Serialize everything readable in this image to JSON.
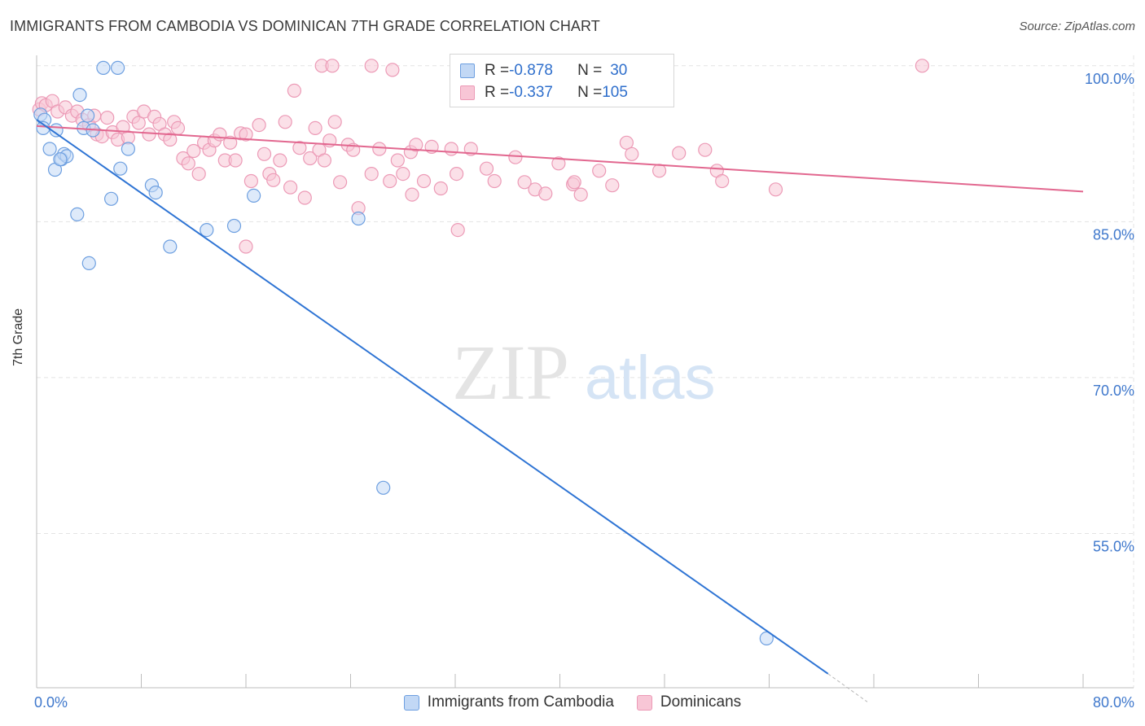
{
  "title": "IMMIGRANTS FROM CAMBODIA VS DOMINICAN 7TH GRADE CORRELATION CHART",
  "source": "Source: ZipAtlas.com",
  "watermark": {
    "zip": "ZIP",
    "atlas": "atlas"
  },
  "colors": {
    "blue_fill": "#c2d8f5",
    "blue_stroke": "#6d9fe0",
    "blue_line": "#2e74d4",
    "pink_fill": "#f8c6d6",
    "pink_stroke": "#ec9ab6",
    "pink_line": "#e2678f",
    "tick_text": "#3f78cc",
    "grid": "#e3e3e3"
  },
  "legend": {
    "rows": [
      {
        "r_label": "R = ",
        "r_value": "-0.878",
        "n_label": "N = ",
        "n_value": "30"
      },
      {
        "r_label": "R = ",
        "r_value": "-0.337",
        "n_label": "N = ",
        "n_value": "105"
      }
    ]
  },
  "bottom_legend": [
    "Immigrants from Cambodia",
    "Dominicans"
  ],
  "chart_data": {
    "type": "scatter",
    "ylabel": "7th Grade",
    "x_tick_labels": [
      "0.0%",
      "80.0%"
    ],
    "y_tick_labels": [
      "100.0%",
      "85.0%",
      "70.0%",
      "55.0%"
    ],
    "y_ticks": [
      100,
      85,
      70,
      55
    ],
    "xlim": [
      0,
      80
    ],
    "ylim": [
      40.5,
      101.5
    ],
    "grid": true,
    "series": [
      {
        "name": "Immigrants from Cambodia",
        "color": "blue",
        "trend": {
          "x": [
            0,
            60.5
          ],
          "y": [
            94.8,
            41.5
          ],
          "dash_to": [
            63.5,
            38.8
          ]
        },
        "points": [
          [
            0.3,
            95.3
          ],
          [
            0.6,
            94.8
          ],
          [
            0.5,
            94.0
          ],
          [
            1.0,
            92.0
          ],
          [
            1.5,
            93.8
          ],
          [
            1.9,
            91.0
          ],
          [
            2.1,
            91.5
          ],
          [
            2.3,
            91.3
          ],
          [
            1.4,
            90.0
          ],
          [
            3.3,
            97.2
          ],
          [
            3.6,
            94.0
          ],
          [
            3.9,
            95.2
          ],
          [
            4.3,
            93.8
          ],
          [
            5.1,
            99.8
          ],
          [
            6.2,
            99.8
          ],
          [
            6.4,
            90.1
          ],
          [
            7.0,
            92.0
          ],
          [
            5.7,
            87.2
          ],
          [
            3.1,
            85.7
          ],
          [
            4.0,
            81.0
          ],
          [
            8.8,
            88.5
          ],
          [
            9.1,
            87.8
          ],
          [
            10.2,
            82.6
          ],
          [
            13.0,
            84.2
          ],
          [
            15.1,
            84.6
          ],
          [
            16.6,
            87.5
          ],
          [
            24.6,
            85.3
          ],
          [
            26.5,
            59.4
          ],
          [
            55.8,
            44.9
          ],
          [
            1.8,
            91.0
          ]
        ]
      },
      {
        "name": "Dominicans",
        "color": "pink",
        "trend": {
          "x": [
            0,
            80
          ],
          "y": [
            94.2,
            87.9
          ]
        },
        "points": [
          [
            0.2,
            95.8
          ],
          [
            0.4,
            96.4
          ],
          [
            0.7,
            96.2
          ],
          [
            1.2,
            96.6
          ],
          [
            1.6,
            95.6
          ],
          [
            2.2,
            96.0
          ],
          [
            2.7,
            95.2
          ],
          [
            3.1,
            95.6
          ],
          [
            3.5,
            94.8
          ],
          [
            4.0,
            94.3
          ],
          [
            4.4,
            95.2
          ],
          [
            4.6,
            93.4
          ],
          [
            5.0,
            93.2
          ],
          [
            5.4,
            95.0
          ],
          [
            5.8,
            93.6
          ],
          [
            6.2,
            92.9
          ],
          [
            6.6,
            94.1
          ],
          [
            7.0,
            93.1
          ],
          [
            7.4,
            95.1
          ],
          [
            7.8,
            94.5
          ],
          [
            8.2,
            95.6
          ],
          [
            8.6,
            93.4
          ],
          [
            9.0,
            95.1
          ],
          [
            9.4,
            94.4
          ],
          [
            9.8,
            93.4
          ],
          [
            10.2,
            92.9
          ],
          [
            10.5,
            94.6
          ],
          [
            10.8,
            94.0
          ],
          [
            11.2,
            91.1
          ],
          [
            11.6,
            90.6
          ],
          [
            12.0,
            91.8
          ],
          [
            12.4,
            89.6
          ],
          [
            12.8,
            92.6
          ],
          [
            13.2,
            91.9
          ],
          [
            13.6,
            92.8
          ],
          [
            14.0,
            93.4
          ],
          [
            14.4,
            90.9
          ],
          [
            14.8,
            92.6
          ],
          [
            15.2,
            90.9
          ],
          [
            15.6,
            93.5
          ],
          [
            16.0,
            93.4
          ],
          [
            16.4,
            88.9
          ],
          [
            17.0,
            94.3
          ],
          [
            17.4,
            91.5
          ],
          [
            17.8,
            89.6
          ],
          [
            18.1,
            89.0
          ],
          [
            18.6,
            90.9
          ],
          [
            19.0,
            94.6
          ],
          [
            19.4,
            88.3
          ],
          [
            19.7,
            97.6
          ],
          [
            20.1,
            92.1
          ],
          [
            20.5,
            87.3
          ],
          [
            20.9,
            91.1
          ],
          [
            21.3,
            94.0
          ],
          [
            21.6,
            91.9
          ],
          [
            22.0,
            90.9
          ],
          [
            22.4,
            92.8
          ],
          [
            22.8,
            94.6
          ],
          [
            23.2,
            88.8
          ],
          [
            23.8,
            92.4
          ],
          [
            24.2,
            91.9
          ],
          [
            24.6,
            86.3
          ],
          [
            25.6,
            89.6
          ],
          [
            26.2,
            92.0
          ],
          [
            27.0,
            88.9
          ],
          [
            27.6,
            90.9
          ],
          [
            28.0,
            89.6
          ],
          [
            28.6,
            91.7
          ],
          [
            29.0,
            92.4
          ],
          [
            29.6,
            88.9
          ],
          [
            30.2,
            92.2
          ],
          [
            30.9,
            88.2
          ],
          [
            31.7,
            92.0
          ],
          [
            32.1,
            89.6
          ],
          [
            33.2,
            92.0
          ],
          [
            34.4,
            90.1
          ],
          [
            35.0,
            88.9
          ],
          [
            36.6,
            91.2
          ],
          [
            37.3,
            88.8
          ],
          [
            38.1,
            88.1
          ],
          [
            38.9,
            87.7
          ],
          [
            39.9,
            90.6
          ],
          [
            41.0,
            88.6
          ],
          [
            41.6,
            87.6
          ],
          [
            43.0,
            89.9
          ],
          [
            44.0,
            88.5
          ],
          [
            45.1,
            92.6
          ],
          [
            45.5,
            91.5
          ],
          [
            47.6,
            89.9
          ],
          [
            49.1,
            91.6
          ],
          [
            51.1,
            91.9
          ],
          [
            52.0,
            89.9
          ],
          [
            52.4,
            88.9
          ],
          [
            56.5,
            88.1
          ],
          [
            21.8,
            100.0
          ],
          [
            22.6,
            100.0
          ],
          [
            25.6,
            100.0
          ],
          [
            27.2,
            99.6
          ],
          [
            32.6,
            100.0
          ],
          [
            45.3,
            100.0
          ],
          [
            67.7,
            100.0
          ],
          [
            32.2,
            84.2
          ],
          [
            16.0,
            82.6
          ],
          [
            28.7,
            87.6
          ],
          [
            41.1,
            88.8
          ]
        ]
      }
    ]
  }
}
